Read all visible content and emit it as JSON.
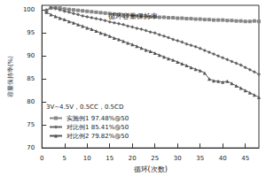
{
  "chart_data": {
    "type": "line",
    "title": "循环容量保持率",
    "annotation": "3V~4.5V，0.5CC，0.5CD",
    "x_label": "循环(次数)",
    "y_label": "容量保持率(%)",
    "x": [
      1,
      2,
      3,
      4,
      5,
      6,
      7,
      8,
      9,
      10,
      11,
      12,
      13,
      14,
      15,
      16,
      17,
      18,
      19,
      20,
      21,
      22,
      23,
      24,
      25,
      26,
      27,
      28,
      29,
      30,
      31,
      32,
      33,
      34,
      35,
      36,
      37,
      38,
      39,
      40,
      41,
      42,
      43,
      44,
      45,
      46,
      47,
      48
    ],
    "series": [
      {
        "name": "实施例1 97.48%@50",
        "color": "#888888",
        "marker": "square",
        "values": [
          99.8,
          100.4,
          100.5,
          100.4,
          100.2,
          100.1,
          100.0,
          99.9,
          99.8,
          99.7,
          99.6,
          99.5,
          99.4,
          99.3,
          99.2,
          99.1,
          99.0,
          98.9,
          98.9,
          98.8,
          98.7,
          98.7,
          98.6,
          98.5,
          98.5,
          98.4,
          98.4,
          98.3,
          98.3,
          98.2,
          98.2,
          98.1,
          98.1,
          98.0,
          98.0,
          97.9,
          97.9,
          97.8,
          97.8,
          97.8,
          97.7,
          97.7,
          97.6,
          97.6,
          97.5,
          97.5,
          97.6,
          97.5
        ]
      },
      {
        "name": "对比例1 85.41%@50",
        "color": "#666666",
        "marker": "diamond",
        "values": [
          100.0,
          100.5,
          100.3,
          100.0,
          99.7,
          99.5,
          99.2,
          99.0,
          98.7,
          98.5,
          98.3,
          98.1,
          97.9,
          97.7,
          97.4,
          97.2,
          97.0,
          96.8,
          96.5,
          96.3,
          96.0,
          95.8,
          95.5,
          95.2,
          95.0,
          94.6,
          94.3,
          94.0,
          93.6,
          93.3,
          93.0,
          92.6,
          92.3,
          92.0,
          91.6,
          91.2,
          90.8,
          90.4,
          90.0,
          89.6,
          89.2,
          88.8,
          88.4,
          88.0,
          87.5,
          87.0,
          86.5,
          86.0
        ]
      },
      {
        "name": "对比例2 79.82%@50",
        "color": "#555555",
        "marker": "triangle",
        "values": [
          99.5,
          99.0,
          98.6,
          98.2,
          97.9,
          97.5,
          97.2,
          96.8,
          96.5,
          96.1,
          95.8,
          95.4,
          95.0,
          94.7,
          94.3,
          93.9,
          93.6,
          93.2,
          92.8,
          92.5,
          92.1,
          91.7,
          91.3,
          91.0,
          90.6,
          90.2,
          89.8,
          89.4,
          89.1,
          88.7,
          88.3,
          87.9,
          87.5,
          87.1,
          86.8,
          86.3,
          85.0,
          84.6,
          84.5,
          84.3,
          84.5,
          84.0,
          83.5,
          83.0,
          82.5,
          82.0,
          81.5,
          81.0
        ]
      }
    ],
    "xlim": [
      0,
      48
    ],
    "xticks": [
      0,
      5,
      10,
      15,
      20,
      25,
      30,
      35,
      40,
      45
    ],
    "ylim": [
      70,
      101
    ],
    "yticks": [
      70,
      75,
      80,
      85,
      90,
      95,
      100
    ],
    "grid": false,
    "legend": "lower left"
  }
}
